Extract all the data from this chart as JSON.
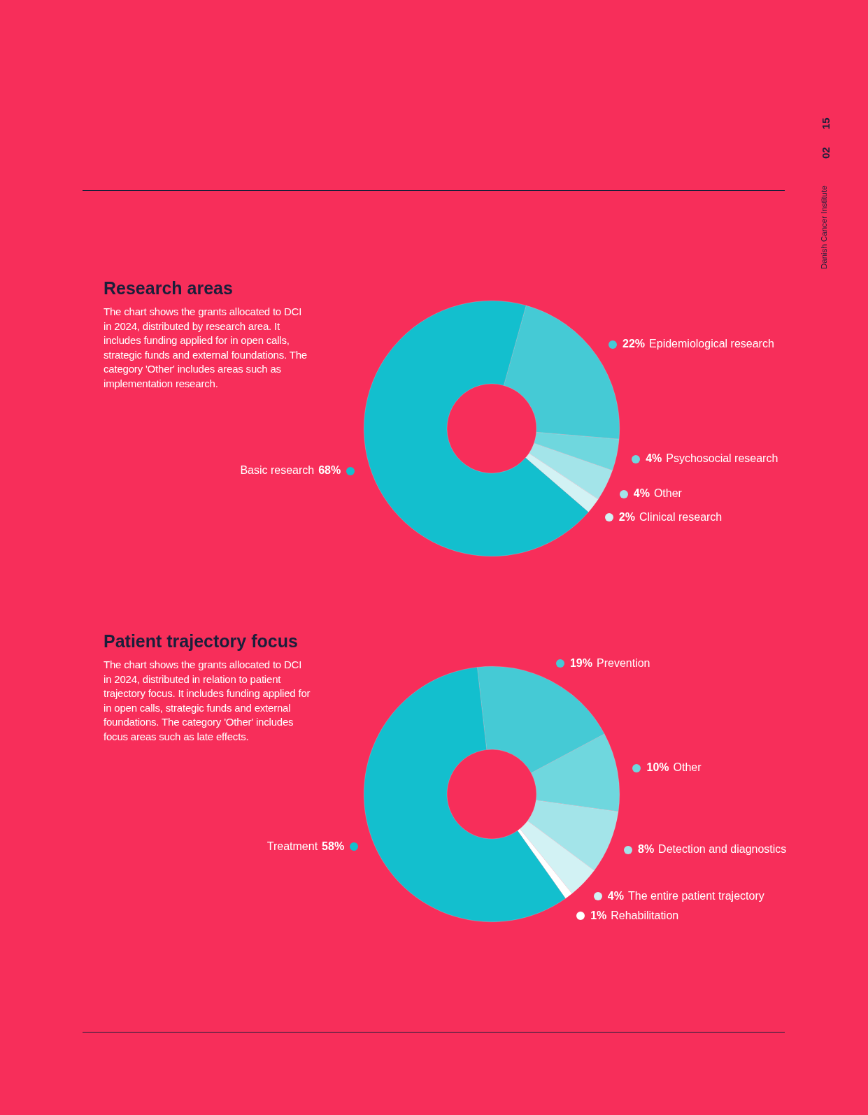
{
  "chart_data": [
    {
      "type": "donut",
      "title": "Research areas",
      "annotations": [
        "The chart shows the grants allocated to DCI in 2024, distributed by research area. It includes funding applied for in open calls, strategic funds and external foundations. The category 'Other' includes areas such as implementation research.",
        "Danish Cancer Institute",
        "02",
        "15"
      ],
      "categories": [
        "Epidemiological research",
        "Psychosocial research",
        "Other",
        "Clinical research",
        "Basic research"
      ],
      "values": [
        22,
        4,
        4,
        2,
        68
      ],
      "value_labels": [
        "22%",
        "4%",
        "4%",
        "2%",
        "68%"
      ],
      "colors": [
        "#45cad5",
        "#6fd7de",
        "#a3e4e9",
        "#d2f2f4",
        "#13bfce"
      ],
      "legend": "right"
    },
    {
      "type": "donut",
      "title": "Patient trajectory focus",
      "annotations": [
        "The chart shows the grants allocated to DCI in 2024, distributed in relation to patient trajectory focus. It includes funding applied for in open calls, strategic funds and external foundations. The category 'Other' includes focus areas such as late effects."
      ],
      "categories": [
        "Prevention",
        "Other",
        "Detection and diagnostics",
        "The entire patient trajectory",
        "Rehabilitation",
        "Treatment"
      ],
      "values": [
        19,
        10,
        8,
        4,
        1,
        58
      ],
      "value_labels": [
        "19%",
        "10%",
        "8%",
        "4%",
        "1%",
        "58%"
      ],
      "colors": [
        "#45cad5",
        "#6fd7de",
        "#a3e4e9",
        "#d2f2f4",
        "#ffffff",
        "#13bfce"
      ],
      "legend": "right"
    }
  ]
}
